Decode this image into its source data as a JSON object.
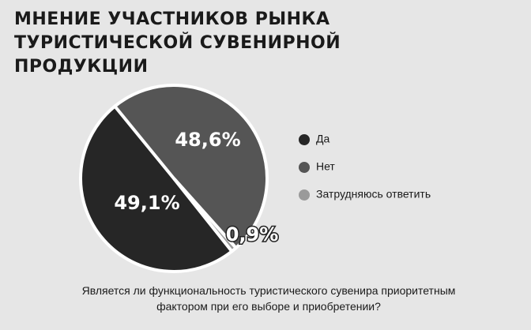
{
  "chart_data": {
    "type": "pie",
    "title": "МНЕНИЕ УЧАСТНИКОВ РЫНКА ТУРИСТИЧЕСКОЙ СУВЕНИРНОЙ ПРОДУКЦИИ",
    "subtitle": "Является ли функциональность туристического сувенира приоритетным фактором при его выборе и приобретении?",
    "categories": [
      "Да",
      "Нет",
      "Затрудняюсь ответить"
    ],
    "values": [
      49.1,
      48.6,
      0.9
    ],
    "value_labels": [
      "49,1%",
      "48,6%",
      "0,9%"
    ],
    "colors": [
      "#262626",
      "#555555",
      "#9a9a9a"
    ]
  }
}
